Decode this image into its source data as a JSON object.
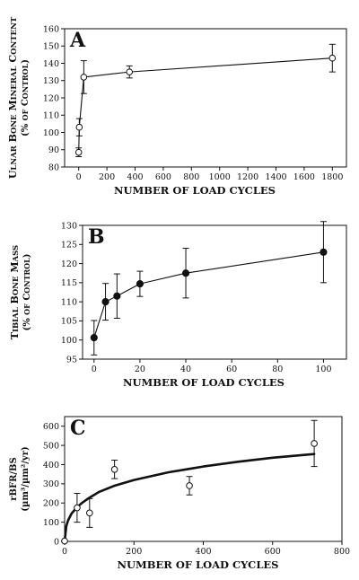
{
  "chart_data": [
    {
      "type": "line",
      "panel_label": "A",
      "ylabel_lines": [
        "Ulnar Bone Mineral Content",
        "(% of Control)"
      ],
      "xlabel": "NUMBER OF LOAD CYCLES",
      "xlim": [
        -100,
        1900
      ],
      "ylim": [
        80,
        160
      ],
      "xticks": [
        0,
        200,
        400,
        600,
        800,
        1000,
        1200,
        1400,
        1600,
        1800
      ],
      "yticks": [
        80,
        90,
        100,
        110,
        120,
        130,
        140,
        150,
        160
      ],
      "marker": "open",
      "grid": false,
      "series": [
        {
          "x": [
            0,
            4,
            36,
            360,
            1800
          ],
          "y": [
            88.5,
            103,
            132,
            135,
            143
          ],
          "yerr": [
            2.5,
            5,
            9.5,
            3.5,
            8
          ],
          "connect": [
            false,
            true,
            true,
            true,
            true
          ]
        }
      ]
    },
    {
      "type": "line",
      "panel_label": "B",
      "ylabel_lines": [
        "Tibial Bone Mass",
        "(% of Control)"
      ],
      "xlabel": "NUMBER OF LOAD CYCLES",
      "xlim": [
        -5,
        110
      ],
      "ylim": [
        95,
        130
      ],
      "xticks": [
        0,
        20,
        40,
        60,
        80,
        100
      ],
      "yticks": [
        95,
        100,
        105,
        110,
        115,
        120,
        125,
        130
      ],
      "marker": "filled",
      "grid": false,
      "series": [
        {
          "x": [
            0,
            5,
            10,
            20,
            40,
            100
          ],
          "y": [
            100.6,
            110,
            111.5,
            114.7,
            117.5,
            123
          ],
          "yerr": [
            4.5,
            4.8,
            5.8,
            3.3,
            6.5,
            8
          ],
          "connect": [
            true,
            true,
            true,
            true,
            true,
            true
          ]
        }
      ]
    },
    {
      "type": "scatter",
      "panel_label": "C",
      "ylabel_lines": [
        "rBFR/BS",
        "(µm³/µm²/yr)"
      ],
      "xlabel": "NUMBER OF LOAD CYCLES",
      "xlim": [
        0,
        800
      ],
      "ylim": [
        0,
        650
      ],
      "xticks": [
        0,
        200,
        400,
        600,
        800
      ],
      "yticks": [
        0,
        100,
        200,
        300,
        400,
        500,
        600
      ],
      "marker": "open",
      "grid": false,
      "series": [
        {
          "x": [
            0,
            36,
            72,
            144,
            360,
            720
          ],
          "y": [
            2,
            175,
            148,
            375,
            290,
            510
          ],
          "yerr": [
            3,
            75,
            75,
            48,
            48,
            120
          ]
        }
      ],
      "fit_curve": {
        "x": [
          1,
          5,
          10,
          20,
          36,
          50,
          72,
          100,
          144,
          200,
          300,
          360,
          400,
          500,
          600,
          720
        ],
        "y": [
          18,
          80,
          110,
          145,
          178,
          200,
          228,
          258,
          290,
          320,
          360,
          378,
          390,
          415,
          436,
          455
        ]
      }
    }
  ]
}
